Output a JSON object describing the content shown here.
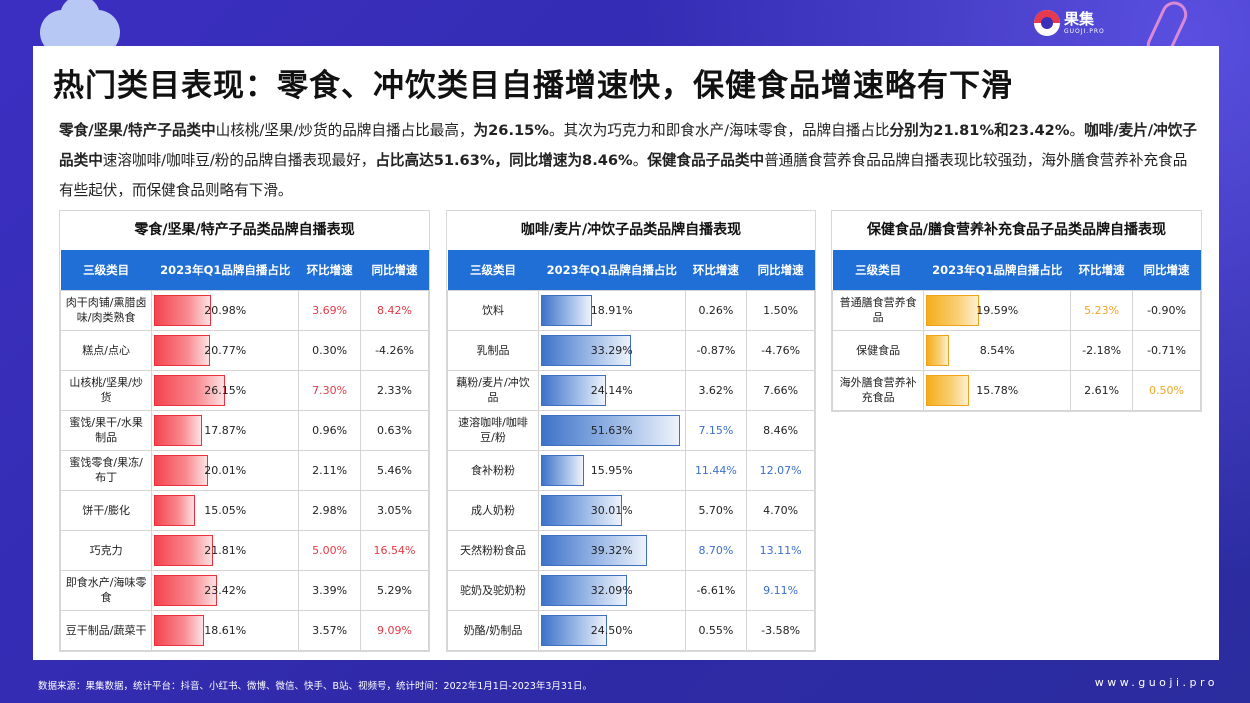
{
  "brand": {
    "cn": "果集",
    "en": "GUOJI.PRO"
  },
  "title": "热门类目表现：零食、冲饮类目自播增速快，保健食品增速略有下滑",
  "summary": [
    {
      "t": "零食/坚果/特产子品类中",
      "b": true
    },
    {
      "t": "山核桃/坚果/炒货的品牌自播占比最高，",
      "b": false
    },
    {
      "t": "为26.15%",
      "b": true
    },
    {
      "t": "。其次为巧克力和即食水产/海味零食，品牌自播占比",
      "b": false
    },
    {
      "t": "分别为21.81%和23.42%",
      "b": true
    },
    {
      "t": "。",
      "b": false
    },
    {
      "t": "咖啡/麦片/冲饮子品类中",
      "b": true
    },
    {
      "t": "速溶咖啡/咖啡豆/粉的品牌自播表现最好，",
      "b": false
    },
    {
      "t": "占比高达51.63%，同比增速为8.46%",
      "b": true
    },
    {
      "t": "。",
      "b": false
    },
    {
      "t": "保健食品子品类中",
      "b": true
    },
    {
      "t": "普通膳食营养食品品牌自播表现比较强劲，海外膳食营养补充食品有些起伏，而保健食品则略有下滑。",
      "b": false
    }
  ],
  "panels": [
    {
      "title": "零食/坚果/特产子品类品牌自播表现",
      "header_color": "#1f6fd6",
      "bar_color": "red",
      "headers": [
        "三级类目",
        "2023年Q1品牌自播占比",
        "环比增速",
        "同比增速"
      ],
      "rows": [
        {
          "cat": "肉干肉铺/熏腊卤味/肉类熟食",
          "share": "20.98%",
          "v": 20.98,
          "mom": "3.69%",
          "mom_c": "red",
          "yoy": "8.42%",
          "yoy_c": "red"
        },
        {
          "cat": "糕点/点心",
          "share": "20.77%",
          "v": 20.77,
          "mom": "0.30%",
          "mom_c": "",
          "yoy": "-4.26%",
          "yoy_c": ""
        },
        {
          "cat": "山核桃/坚果/炒货",
          "share": "26.15%",
          "v": 26.15,
          "mom": "7.30%",
          "mom_c": "red",
          "yoy": "2.33%",
          "yoy_c": ""
        },
        {
          "cat": "蜜饯/果干/水果制品",
          "share": "17.87%",
          "v": 17.87,
          "mom": "0.96%",
          "mom_c": "",
          "yoy": "0.63%",
          "yoy_c": ""
        },
        {
          "cat": "蜜饯零食/果冻/布丁",
          "share": "20.01%",
          "v": 20.01,
          "mom": "2.11%",
          "mom_c": "",
          "yoy": "5.46%",
          "yoy_c": ""
        },
        {
          "cat": "饼干/膨化",
          "share": "15.05%",
          "v": 15.05,
          "mom": "2.98%",
          "mom_c": "",
          "yoy": "3.05%",
          "yoy_c": ""
        },
        {
          "cat": "巧克力",
          "share": "21.81%",
          "v": 21.81,
          "mom": "5.00%",
          "mom_c": "red",
          "yoy": "16.54%",
          "yoy_c": "red"
        },
        {
          "cat": "即食水产/海味零食",
          "share": "23.42%",
          "v": 23.42,
          "mom": "3.39%",
          "mom_c": "",
          "yoy": "5.29%",
          "yoy_c": ""
        },
        {
          "cat": "豆干制品/蔬菜干",
          "share": "18.61%",
          "v": 18.61,
          "mom": "3.57%",
          "mom_c": "",
          "yoy": "9.09%",
          "yoy_c": "red"
        }
      ]
    },
    {
      "title": "咖啡/麦片/冲饮子品类品牌自播表现",
      "header_color": "#1f6fd6",
      "bar_color": "blue",
      "headers": [
        "三级类目",
        "2023年Q1品牌自播占比",
        "环比增速",
        "同比增速"
      ],
      "rows": [
        {
          "cat": "饮料",
          "share": "18.91%",
          "v": 18.91,
          "mom": "0.26%",
          "mom_c": "",
          "yoy": "1.50%",
          "yoy_c": ""
        },
        {
          "cat": "乳制品",
          "share": "33.29%",
          "v": 33.29,
          "mom": "-0.87%",
          "mom_c": "",
          "yoy": "-4.76%",
          "yoy_c": ""
        },
        {
          "cat": "藕粉/麦片/冲饮品",
          "share": "24.14%",
          "v": 24.14,
          "mom": "3.62%",
          "mom_c": "",
          "yoy": "7.66%",
          "yoy_c": ""
        },
        {
          "cat": "速溶咖啡/咖啡豆/粉",
          "share": "51.63%",
          "v": 51.63,
          "mom": "7.15%",
          "mom_c": "blue",
          "yoy": "8.46%",
          "yoy_c": ""
        },
        {
          "cat": "食补粉粉",
          "share": "15.95%",
          "v": 15.95,
          "mom": "11.44%",
          "mom_c": "blue",
          "yoy": "12.07%",
          "yoy_c": "blue"
        },
        {
          "cat": "成人奶粉",
          "share": "30.01%",
          "v": 30.01,
          "mom": "5.70%",
          "mom_c": "",
          "yoy": "4.70%",
          "yoy_c": ""
        },
        {
          "cat": "天然粉粉食品",
          "share": "39.32%",
          "v": 39.32,
          "mom": "8.70%",
          "mom_c": "blue",
          "yoy": "13.11%",
          "yoy_c": "blue"
        },
        {
          "cat": "驼奶及驼奶粉",
          "share": "32.09%",
          "v": 32.09,
          "mom": "-6.61%",
          "mom_c": "",
          "yoy": "9.11%",
          "yoy_c": "blue"
        },
        {
          "cat": "奶酪/奶制品",
          "share": "24.50%",
          "v": 24.5,
          "mom": "0.55%",
          "mom_c": "",
          "yoy": "-3.58%",
          "yoy_c": ""
        }
      ]
    },
    {
      "title": "保健食品/膳食营养补充食品子品类品牌自播表现",
      "header_color": "#1f6fd6",
      "bar_color": "orange",
      "headers": [
        "三级类目",
        "2023年Q1品牌自播占比",
        "环比增速",
        "同比增速"
      ],
      "rows": [
        {
          "cat": "普通膳食营养食品",
          "share": "19.59%",
          "v": 19.59,
          "mom": "5.23%",
          "mom_c": "orange",
          "yoy": "-0.90%",
          "yoy_c": ""
        },
        {
          "cat": "保健食品",
          "share": "8.54%",
          "v": 8.54,
          "mom": "-2.18%",
          "mom_c": "",
          "yoy": "-0.71%",
          "yoy_c": ""
        },
        {
          "cat": "海外膳食营养补充食品",
          "share": "15.78%",
          "v": 15.78,
          "mom": "2.61%",
          "mom_c": "",
          "yoy": "0.50%",
          "yoy_c": "orange"
        }
      ]
    }
  ],
  "footer": {
    "source": "数据来源：果集数据，统计平台：抖音、小红书、微博、微信、快手、B站、视频号，统计时间：2022年1月1日-2023年3月31日。",
    "url": "www.guoji.pro"
  }
}
